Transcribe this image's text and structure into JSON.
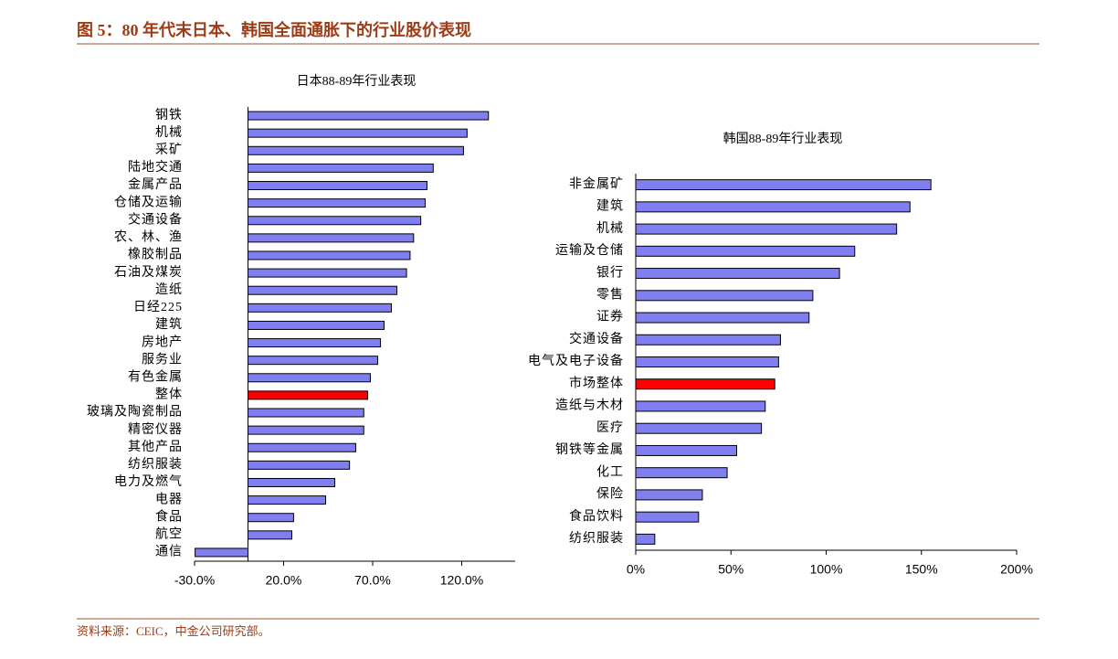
{
  "header": {
    "title": "图 5：80 年代末日本、韩国全面通胀下的行业股价表现"
  },
  "source": "资料来源：CEIC，中金公司研究部。",
  "chart_data": [
    {
      "type": "bar",
      "orientation": "horizontal",
      "title": "日本88-89年行业表现",
      "categories": [
        "钢铁",
        "机械",
        "采矿",
        "陆地交通",
        "金属产品",
        "仓储及运输",
        "交通设备",
        "农、林、渔",
        "橡胶制品",
        "石油及煤炭",
        "造纸",
        "日经225",
        "建筑",
        "房地产",
        "服务业",
        "有色金属",
        "整体",
        "玻璃及陶瓷制品",
        "精密仪器",
        "其他产品",
        "纺织服装",
        "电力及燃气",
        "电器",
        "食品",
        "航空",
        "通信"
      ],
      "values": [
        135,
        123,
        121,
        104,
        100.5,
        99.5,
        97,
        93,
        91,
        89,
        83.6,
        80.5,
        76.4,
        74.4,
        72.8,
        68.7,
        67.2,
        65,
        65,
        60.5,
        57,
        48.7,
        43.6,
        25.6,
        24.6,
        -29.7
      ],
      "colors": [
        "#7f7fef",
        "#7f7fef",
        "#7f7fef",
        "#7f7fef",
        "#7f7fef",
        "#7f7fef",
        "#7f7fef",
        "#7f7fef",
        "#7f7fef",
        "#7f7fef",
        "#7f7fef",
        "#7f7fef",
        "#7f7fef",
        "#7f7fef",
        "#7f7fef",
        "#7f7fef",
        "#ff0000",
        "#7f7fef",
        "#7f7fef",
        "#7f7fef",
        "#7f7fef",
        "#7f7fef",
        "#7f7fef",
        "#7f7fef",
        "#7f7fef",
        "#7f7fef"
      ],
      "xlim": [
        -30,
        150
      ],
      "xticks": [
        {
          "value": -30,
          "label": "-30.0%"
        },
        {
          "value": 20,
          "label": "20.0%"
        },
        {
          "value": 70,
          "label": "70.0%"
        },
        {
          "value": 120,
          "label": "120.0%"
        }
      ]
    },
    {
      "type": "bar",
      "orientation": "horizontal",
      "title": "韩国88-89年行业表现",
      "categories": [
        "非金属矿",
        "建筑",
        "机械",
        "运输及仓储",
        "银行",
        "零售",
        "证券",
        "交通设备",
        "电气及电子设备",
        "市场整体",
        "造纸与木材",
        "医疗",
        "钢铁等金属",
        "化工",
        "保险",
        "食品饮料",
        "纺织服装"
      ],
      "values": [
        155,
        144,
        137,
        115,
        107,
        93,
        91,
        76,
        75,
        73,
        68,
        66,
        53,
        48,
        35,
        33,
        10
      ],
      "colors": [
        "#7f7fef",
        "#7f7fef",
        "#7f7fef",
        "#7f7fef",
        "#7f7fef",
        "#7f7fef",
        "#7f7fef",
        "#7f7fef",
        "#7f7fef",
        "#ff0000",
        "#7f7fef",
        "#7f7fef",
        "#7f7fef",
        "#7f7fef",
        "#7f7fef",
        "#7f7fef",
        "#7f7fef"
      ],
      "xlim": [
        0,
        200
      ],
      "xticks": [
        {
          "value": 0,
          "label": "0%"
        },
        {
          "value": 50,
          "label": "50%"
        },
        {
          "value": 100,
          "label": "100%"
        },
        {
          "value": 150,
          "label": "150%"
        },
        {
          "value": 200,
          "label": "200%"
        }
      ]
    }
  ]
}
